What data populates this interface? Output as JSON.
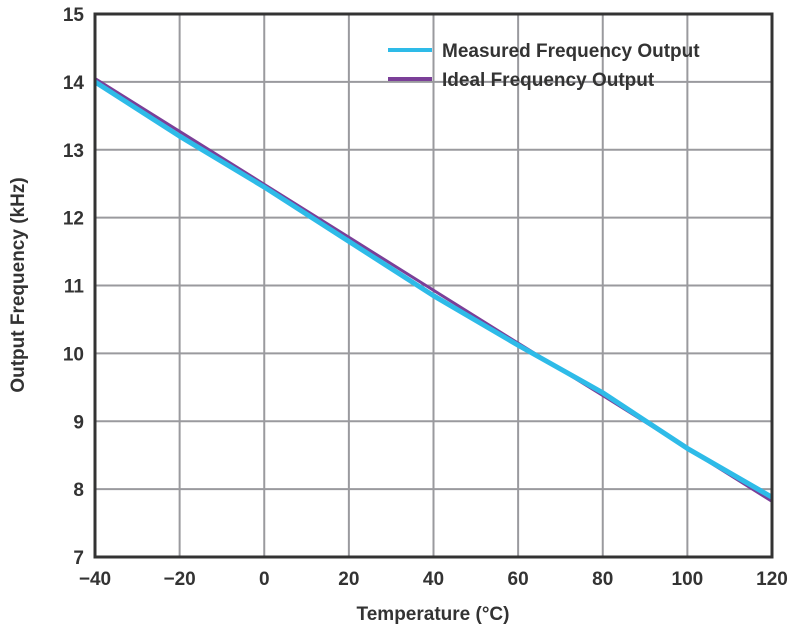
{
  "chart_data": {
    "type": "line",
    "title": "",
    "xlabel": "Temperature (°C)",
    "ylabel": "Output Frequency (kHz)",
    "xlim": [
      -40,
      120
    ],
    "ylim": [
      7,
      15
    ],
    "xticks": [
      "−40",
      "−20",
      "0",
      "20",
      "40",
      "60",
      "80",
      "100",
      "120"
    ],
    "yticks": [
      "7",
      "8",
      "9",
      "10",
      "11",
      "12",
      "13",
      "14",
      "15"
    ],
    "grid": true,
    "legend": "top-right",
    "x": [
      -40,
      -20,
      0,
      20,
      40,
      60,
      80,
      100,
      120
    ],
    "series": [
      {
        "name": "Measured Frequency Output",
        "color": "#2ebbe8",
        "values": [
          14.0,
          13.2,
          12.45,
          11.65,
          10.85,
          10.12,
          9.42,
          8.6,
          7.88
        ]
      },
      {
        "name": "Ideal Frequency Output",
        "color": "#7b3f98",
        "values": [
          14.05,
          13.27,
          12.49,
          11.71,
          10.93,
          10.15,
          9.38,
          8.6,
          7.82
        ]
      }
    ]
  }
}
